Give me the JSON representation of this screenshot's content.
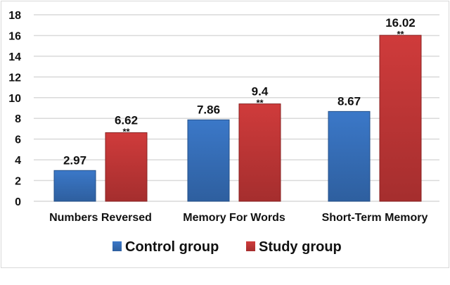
{
  "chart_data": {
    "type": "bar",
    "categories": [
      "Numbers Reversed",
      "Memory For Words",
      "Short-Term Memory"
    ],
    "series": [
      {
        "name": "Control group",
        "values": [
          2.97,
          7.86,
          8.67
        ],
        "labels": [
          "2.97",
          "7.86",
          "8.67"
        ],
        "color": "#3b78c8",
        "annotations": [
          "",
          "",
          ""
        ]
      },
      {
        "name": "Study group",
        "values": [
          6.62,
          9.4,
          16.02
        ],
        "labels": [
          "6.62",
          "9.4",
          "16.02"
        ],
        "color": "#cf3b3b",
        "annotations": [
          "**",
          "**",
          "**"
        ]
      }
    ],
    "yticks": [
      "0",
      "2",
      "4",
      "6",
      "8",
      "10",
      "12",
      "14",
      "16",
      "18"
    ],
    "ylim": [
      0,
      18
    ],
    "grid": true,
    "legend": "bottom"
  }
}
